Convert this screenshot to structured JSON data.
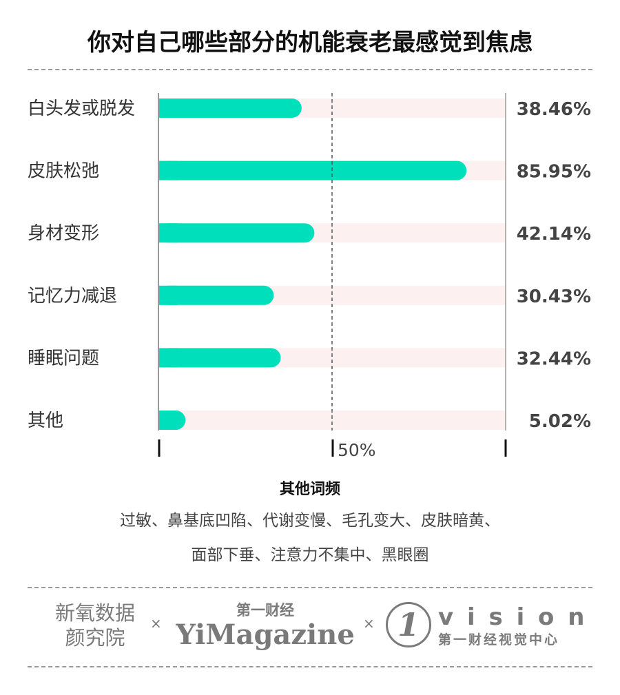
{
  "title": "你对自己哪些部分的机能衰老最感觉到焦虑",
  "chart_data": {
    "type": "bar",
    "orientation": "horizontal",
    "categories": [
      "白头发或脱发",
      "皮肤松弛",
      "身材变形",
      "记忆力减退",
      "睡眠问题",
      "其他"
    ],
    "values": [
      38.46,
      85.95,
      42.14,
      30.43,
      32.44,
      5.02
    ],
    "value_labels": [
      "38.46%",
      "85.95%",
      "42.14%",
      "30.43%",
      "32.44%",
      "5.02%"
    ],
    "xlim": [
      0,
      100
    ],
    "reference_line": 50,
    "reference_label": "50%",
    "bar_color": "#00dfbb",
    "track_color": "#fcf1f0"
  },
  "other_words": {
    "heading": "其他词频",
    "line1": "过敏、鼻基底凹陷、代谢变慢、毛孔变大、皮肤暗黄、",
    "line2": "面部下垂、注意力不集中、黑眼圈"
  },
  "footer": {
    "logo1_line1": "新氧数据",
    "logo1_line2": "颜究院",
    "sep": "×",
    "logo2_top": "第一财经",
    "logo2_main": "YiMagazine",
    "logo3_mark": "1",
    "logo3_main": "v i s i o n",
    "logo3_sub": "第一财经视觉中心"
  }
}
